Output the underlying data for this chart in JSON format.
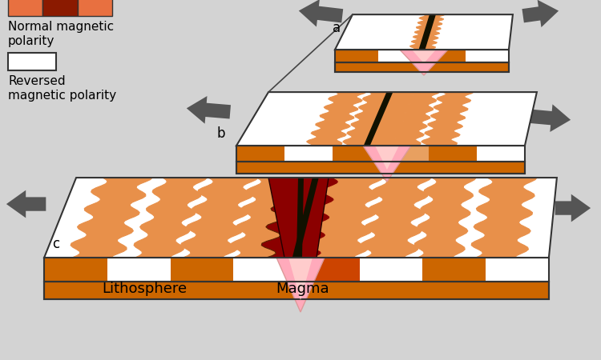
{
  "bg_color": "#d3d3d3",
  "normal_color_light": "#e8904a",
  "normal_color_dark": "#8b0000",
  "normal_color_mid": "#cc4400",
  "reversed_color": "#ffffff",
  "litho_orange": "#cc6600",
  "litho_light": "#e8a060",
  "magma_pink": "#ffaabb",
  "magma_dark": "#8b0000",
  "arrow_color": "#555555",
  "border_color": "#333333",
  "label_a": "a",
  "label_b": "b",
  "label_c": "c",
  "text_normal": "Normal magnetic\npolarity",
  "text_reversed": "Reversed\nmagnetic polarity",
  "legend_colors": [
    "#e87040",
    "#8b1a00",
    "#e87040"
  ],
  "litho_label": "Lithosphere",
  "magma_label": "Magma"
}
